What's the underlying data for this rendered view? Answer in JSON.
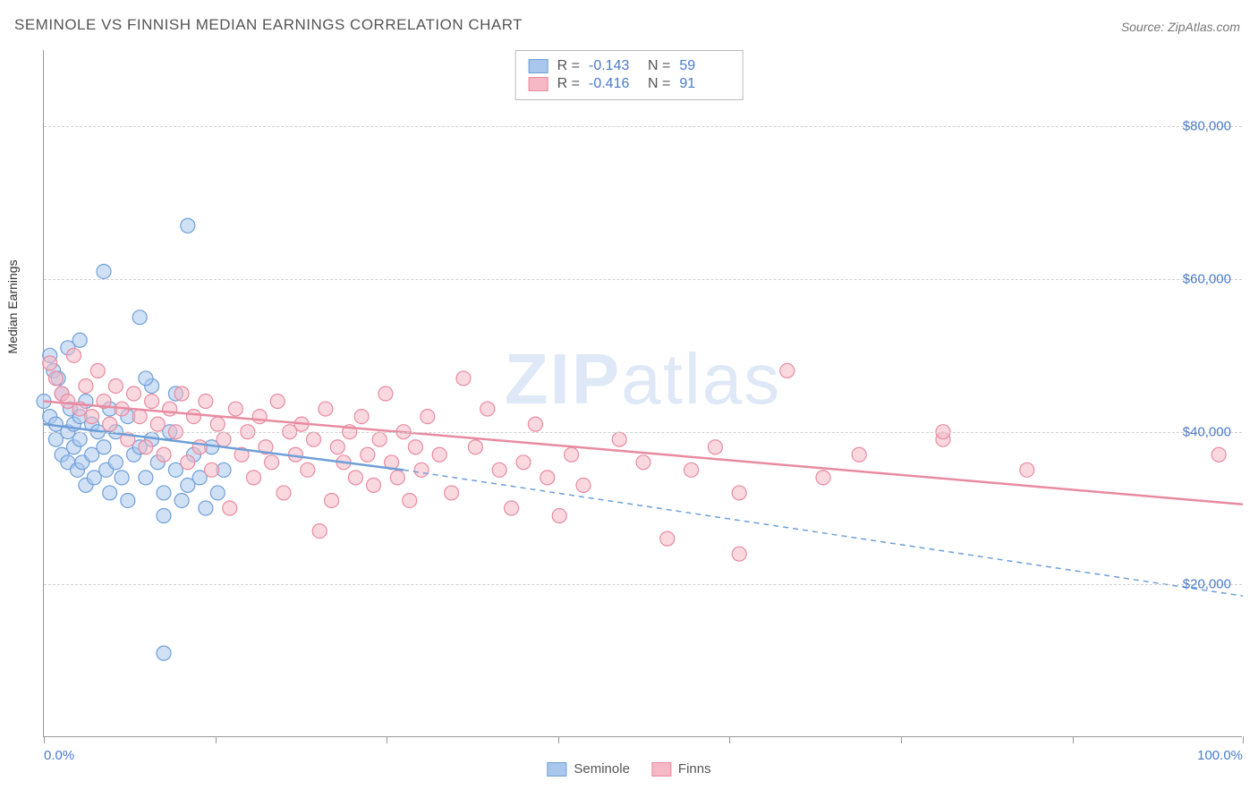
{
  "title": "SEMINOLE VS FINNISH MEDIAN EARNINGS CORRELATION CHART",
  "source_label": "Source: ZipAtlas.com",
  "watermark": {
    "bold": "ZIP",
    "rest": "atlas"
  },
  "y_axis_label": "Median Earnings",
  "chart": {
    "type": "scatter-with-trend",
    "xlim": [
      0,
      100
    ],
    "ylim": [
      0,
      90000
    ],
    "x_ticks": [
      0,
      14.3,
      28.6,
      42.9,
      57.2,
      71.5,
      85.8,
      100
    ],
    "x_tick_labels": {
      "0": "0.0%",
      "100": "100.0%"
    },
    "y_grid": [
      20000,
      40000,
      60000,
      80000
    ],
    "y_tick_labels": [
      "$20,000",
      "$40,000",
      "$60,000",
      "$80,000"
    ],
    "grid_color": "#d0d0d0",
    "axis_color": "#999999",
    "tick_label_color": "#4a7ac7",
    "background": "#ffffff",
    "marker_radius": 8,
    "marker_opacity": 0.55,
    "trend_line_width": 2.5
  },
  "series": [
    {
      "name": "Seminole",
      "color_fill": "#a9c7ec",
      "color_stroke": "#6f9fd8",
      "R": "-0.143",
      "N": "59",
      "trend": {
        "x1": 0,
        "y1": 41000,
        "x2": 30,
        "y2": 35000,
        "style": "solid"
      },
      "trend_ext": {
        "x1": 30,
        "y1": 35000,
        "x2": 100,
        "y2": 18500,
        "style": "dashed"
      },
      "points": [
        [
          0,
          44000
        ],
        [
          0.5,
          42000
        ],
        [
          0.8,
          48000
        ],
        [
          1,
          39000
        ],
        [
          1,
          41000
        ],
        [
          1.2,
          47000
        ],
        [
          1.5,
          37000
        ],
        [
          1.5,
          45000
        ],
        [
          2,
          40000
        ],
        [
          2,
          36000
        ],
        [
          2.2,
          43000
        ],
        [
          2.5,
          41000
        ],
        [
          2.5,
          38000
        ],
        [
          2.8,
          35000
        ],
        [
          3,
          42000
        ],
        [
          3,
          39000
        ],
        [
          3.2,
          36000
        ],
        [
          3.5,
          44000
        ],
        [
          3.5,
          33000
        ],
        [
          4,
          41000
        ],
        [
          4,
          37000
        ],
        [
          4.2,
          34000
        ],
        [
          4.5,
          40000
        ],
        [
          5,
          61000
        ],
        [
          5,
          38000
        ],
        [
          5.2,
          35000
        ],
        [
          5.5,
          43000
        ],
        [
          5.5,
          32000
        ],
        [
          6,
          40000
        ],
        [
          6,
          36000
        ],
        [
          6.5,
          34000
        ],
        [
          7,
          42000
        ],
        [
          7,
          31000
        ],
        [
          7.5,
          37000
        ],
        [
          8,
          38000
        ],
        [
          8,
          55000
        ],
        [
          8.5,
          34000
        ],
        [
          9,
          39000
        ],
        [
          9.5,
          36000
        ],
        [
          10,
          32000
        ],
        [
          10,
          29000
        ],
        [
          10.5,
          40000
        ],
        [
          11,
          35000
        ],
        [
          11.5,
          31000
        ],
        [
          12,
          33000
        ],
        [
          12,
          67000
        ],
        [
          12.5,
          37000
        ],
        [
          13,
          34000
        ],
        [
          13.5,
          30000
        ],
        [
          14,
          38000
        ],
        [
          14.5,
          32000
        ],
        [
          15,
          35000
        ],
        [
          10,
          11000
        ],
        [
          11,
          45000
        ],
        [
          9,
          46000
        ],
        [
          8.5,
          47000
        ],
        [
          3,
          52000
        ],
        [
          0.5,
          50000
        ],
        [
          2,
          51000
        ]
      ]
    },
    {
      "name": "Finns",
      "color_fill": "#f6b8c5",
      "color_stroke": "#e88ba1",
      "R": "-0.416",
      "N": "91",
      "trend": {
        "x1": 0,
        "y1": 44000,
        "x2": 100,
        "y2": 30500,
        "style": "solid"
      },
      "points": [
        [
          0.5,
          49000
        ],
        [
          1,
          47000
        ],
        [
          1.5,
          45000
        ],
        [
          2,
          44000
        ],
        [
          2.5,
          50000
        ],
        [
          3,
          43000
        ],
        [
          3.5,
          46000
        ],
        [
          4,
          42000
        ],
        [
          4.5,
          48000
        ],
        [
          5,
          44000
        ],
        [
          5.5,
          41000
        ],
        [
          6,
          46000
        ],
        [
          6.5,
          43000
        ],
        [
          7,
          39000
        ],
        [
          7.5,
          45000
        ],
        [
          8,
          42000
        ],
        [
          8.5,
          38000
        ],
        [
          9,
          44000
        ],
        [
          9.5,
          41000
        ],
        [
          10,
          37000
        ],
        [
          10.5,
          43000
        ],
        [
          11,
          40000
        ],
        [
          11.5,
          45000
        ],
        [
          12,
          36000
        ],
        [
          12.5,
          42000
        ],
        [
          13,
          38000
        ],
        [
          13.5,
          44000
        ],
        [
          14,
          35000
        ],
        [
          14.5,
          41000
        ],
        [
          15,
          39000
        ],
        [
          15.5,
          30000
        ],
        [
          16,
          43000
        ],
        [
          16.5,
          37000
        ],
        [
          17,
          40000
        ],
        [
          17.5,
          34000
        ],
        [
          18,
          42000
        ],
        [
          18.5,
          38000
        ],
        [
          19,
          36000
        ],
        [
          19.5,
          44000
        ],
        [
          20,
          32000
        ],
        [
          20.5,
          40000
        ],
        [
          21,
          37000
        ],
        [
          21.5,
          41000
        ],
        [
          22,
          35000
        ],
        [
          22.5,
          39000
        ],
        [
          23,
          27000
        ],
        [
          23.5,
          43000
        ],
        [
          24,
          31000
        ],
        [
          24.5,
          38000
        ],
        [
          25,
          36000
        ],
        [
          25.5,
          40000
        ],
        [
          26,
          34000
        ],
        [
          26.5,
          42000
        ],
        [
          27,
          37000
        ],
        [
          27.5,
          33000
        ],
        [
          28,
          39000
        ],
        [
          28.5,
          45000
        ],
        [
          29,
          36000
        ],
        [
          29.5,
          34000
        ],
        [
          30,
          40000
        ],
        [
          30.5,
          31000
        ],
        [
          31,
          38000
        ],
        [
          31.5,
          35000
        ],
        [
          32,
          42000
        ],
        [
          33,
          37000
        ],
        [
          34,
          32000
        ],
        [
          35,
          47000
        ],
        [
          36,
          38000
        ],
        [
          37,
          43000
        ],
        [
          38,
          35000
        ],
        [
          39,
          30000
        ],
        [
          40,
          36000
        ],
        [
          41,
          41000
        ],
        [
          42,
          34000
        ],
        [
          43,
          29000
        ],
        [
          44,
          37000
        ],
        [
          45,
          33000
        ],
        [
          48,
          39000
        ],
        [
          50,
          36000
        ],
        [
          52,
          26000
        ],
        [
          54,
          35000
        ],
        [
          56,
          38000
        ],
        [
          58,
          32000
        ],
        [
          58,
          24000
        ],
        [
          62,
          48000
        ],
        [
          65,
          34000
        ],
        [
          68,
          37000
        ],
        [
          75,
          39000
        ],
        [
          82,
          35000
        ],
        [
          75,
          40000
        ],
        [
          98,
          37000
        ]
      ]
    }
  ],
  "bottom_legend": [
    {
      "label": "Seminole",
      "fill": "#a9c7ec",
      "stroke": "#6f9fd8"
    },
    {
      "label": "Finns",
      "fill": "#f6b8c5",
      "stroke": "#e88ba1"
    }
  ]
}
